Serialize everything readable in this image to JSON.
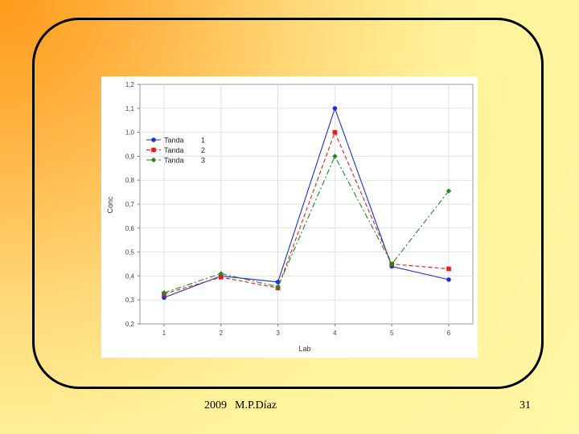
{
  "footer": {
    "year": "2009",
    "author": "M.P.Díaz",
    "page": "31"
  },
  "chart_data": {
    "type": "line",
    "xlabel": "Lab",
    "ylabel": "Conc",
    "categories": [
      "1",
      "2",
      "3",
      "4",
      "5",
      "6"
    ],
    "ylim": [
      0.2,
      1.2
    ],
    "yticks": [
      "0,2",
      "0,3",
      "0,4",
      "0,5",
      "0,6",
      "0,7",
      "0,8",
      "0,9",
      "1,0",
      "1,1",
      "1,2"
    ],
    "grid": true,
    "legend_placement": "top-left",
    "series": [
      {
        "name": "Tanda",
        "code": "1",
        "color": "#1f2fd0",
        "marker": "circle",
        "dash": "",
        "values": [
          0.31,
          0.4,
          0.375,
          1.1,
          0.44,
          0.385
        ]
      },
      {
        "name": "Tanda",
        "code": "2",
        "color": "#e02020",
        "marker": "square",
        "dash": "5,3",
        "values": [
          0.325,
          0.395,
          0.35,
          1.0,
          0.45,
          0.43
        ]
      },
      {
        "name": "Tanda",
        "code": "3",
        "color": "#1e8a1e",
        "marker": "diamond",
        "dash": "7,3,2,3",
        "values": [
          0.33,
          0.41,
          0.355,
          0.9,
          0.45,
          0.755
        ]
      }
    ]
  }
}
